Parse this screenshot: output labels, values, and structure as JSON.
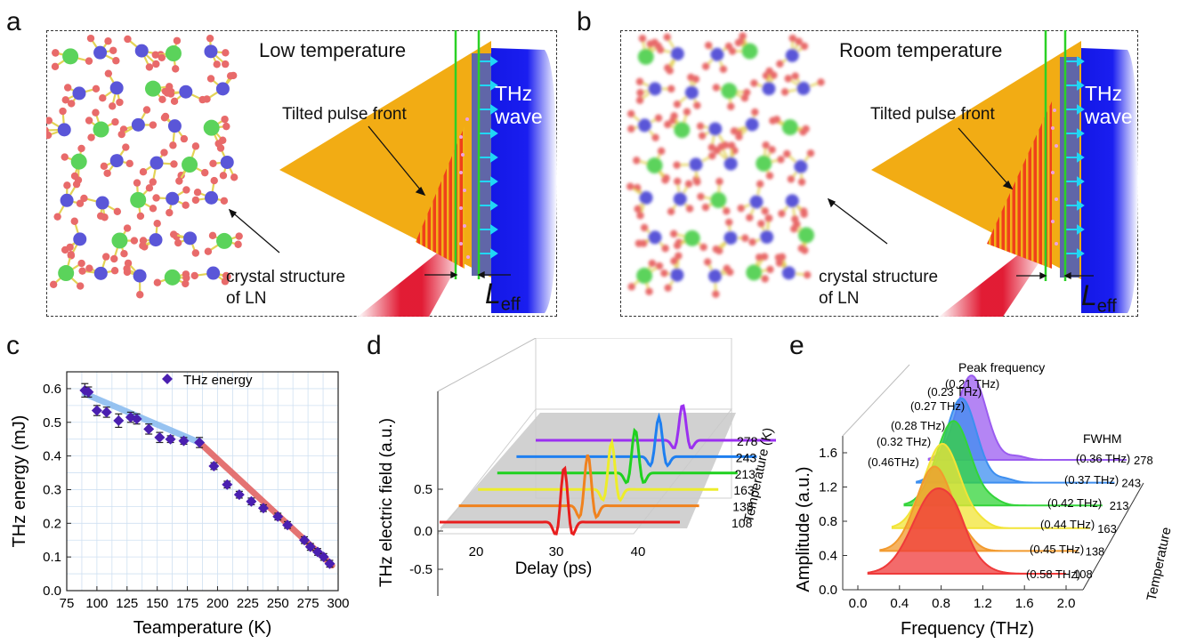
{
  "panels": {
    "a": {
      "letter": "a",
      "title": "Low temperature",
      "pulse_label": "Tilted pulse front",
      "thz_line1": "THz",
      "thz_line2": "wave",
      "crystal_line1": "crystal structure",
      "crystal_line2": "of LN",
      "leff_main": "L",
      "leff_sub": "eff"
    },
    "b": {
      "letter": "b",
      "title": "Room temperature",
      "pulse_label": "Tilted pulse front",
      "thz_line1": "THz",
      "thz_line2": "wave",
      "crystal_line1": "crystal structure",
      "crystal_line2": "of LN",
      "leff_main": "L",
      "leff_sub": "eff"
    },
    "c": {
      "letter": "c"
    },
    "d": {
      "letter": "d"
    },
    "e": {
      "letter": "e"
    }
  },
  "colors": {
    "prism": "#f2ac14",
    "thz_blue": "#1418e6",
    "beam_red": "#e0102a",
    "green_line": "#2ad126",
    "cyan_arrow": "#21d6f5",
    "atom_blue": "#5a56d8",
    "atom_green": "#5bd35b",
    "atom_red": "#e86a6a",
    "bond_yellow": "#e3d356"
  },
  "chart_data": [
    {
      "type": "scatter",
      "panel": "c",
      "xlabel": "Teamperature (K)",
      "ylabel": "THz energy (mJ)",
      "xlim": [
        75,
        300
      ],
      "ylim": [
        0.0,
        0.65
      ],
      "xticks": [
        "75",
        "100",
        "125",
        "150",
        "175",
        "200",
        "225",
        "250",
        "275",
        "300"
      ],
      "yticks": [
        "0.0",
        "0.1",
        "0.2",
        "0.3",
        "0.4",
        "0.5",
        "0.6"
      ],
      "grid": true,
      "legend": "top",
      "series": [
        {
          "name": "THz energy",
          "x": [
            90,
            93,
            100,
            108,
            118,
            128,
            133,
            143,
            152,
            161,
            172,
            185,
            197,
            208,
            218,
            228,
            238,
            250,
            258,
            272,
            277,
            283,
            288,
            293
          ],
          "y": [
            0.595,
            0.59,
            0.535,
            0.53,
            0.505,
            0.515,
            0.51,
            0.48,
            0.455,
            0.45,
            0.445,
            0.44,
            0.37,
            0.315,
            0.285,
            0.265,
            0.245,
            0.22,
            0.195,
            0.15,
            0.13,
            0.115,
            0.1,
            0.08
          ],
          "err": [
            0.02,
            0.015,
            0.015,
            0.015,
            0.02,
            0.015,
            0.015,
            0.015,
            0.015,
            0.01,
            0.01,
            0.015,
            0.01,
            0.01,
            0.01,
            0.01,
            0.01,
            0.01,
            0.01,
            0.01,
            0.01,
            0.01,
            0.01,
            0.01
          ]
        }
      ],
      "fits": [
        {
          "color": "#8cbdf0",
          "x": [
            90,
            185
          ],
          "y": [
            0.585,
            0.44
          ]
        },
        {
          "color": "#e26464",
          "x": [
            185,
            295
          ],
          "y": [
            0.44,
            0.075
          ]
        }
      ]
    },
    {
      "type": "line",
      "panel": "d",
      "xlabel": "Delay (ps)",
      "ylabel": "THz electric field (a.u.)",
      "zlabel": "Temperature (K)",
      "xticks": [
        "20",
        "30",
        "40"
      ],
      "yticks": [
        "-0.5",
        "0.0",
        "0.5"
      ],
      "temperatures": [
        "278",
        "243",
        "213",
        "163",
        "138",
        "108"
      ],
      "series_colors": [
        "#9b30f0",
        "#1e7ff0",
        "#1fd11f",
        "#eded2a",
        "#f0821e",
        "#e81e1e"
      ]
    },
    {
      "type": "area",
      "panel": "e",
      "xlabel": "Frequency (THz)",
      "ylabel": "Amplitude (a.u.)",
      "zlabel": "Temperature",
      "xticks": [
        "0.0",
        "0.4",
        "0.8",
        "1.2",
        "1.6",
        "2.0"
      ],
      "yticks": [
        "0.0",
        "0.4",
        "0.8",
        "1.2",
        "1.6"
      ],
      "temperatures": [
        "278",
        "243",
        "213",
        "163",
        "138",
        "108"
      ],
      "series_colors": [
        "#9b5cf0",
        "#3d8ff0",
        "#33d43a",
        "#f2e436",
        "#f29a2e",
        "#ef3a3a"
      ],
      "peak_title": "Peak frequency",
      "peak_labels": [
        "(0.21 THz)",
        "(0.23 THz)",
        "(0.27 THz)",
        "(0.28 THz)",
        "(0.32 THz)",
        "(0.46THz)"
      ],
      "fwhm_title": "FWHM",
      "fwhm_labels": [
        "(0.36 THz)",
        "(0.37 THz)",
        "(0.42 THz)",
        "(0.44 THz)",
        "(0.45 THz)",
        "(0.58 THz)"
      ]
    }
  ]
}
